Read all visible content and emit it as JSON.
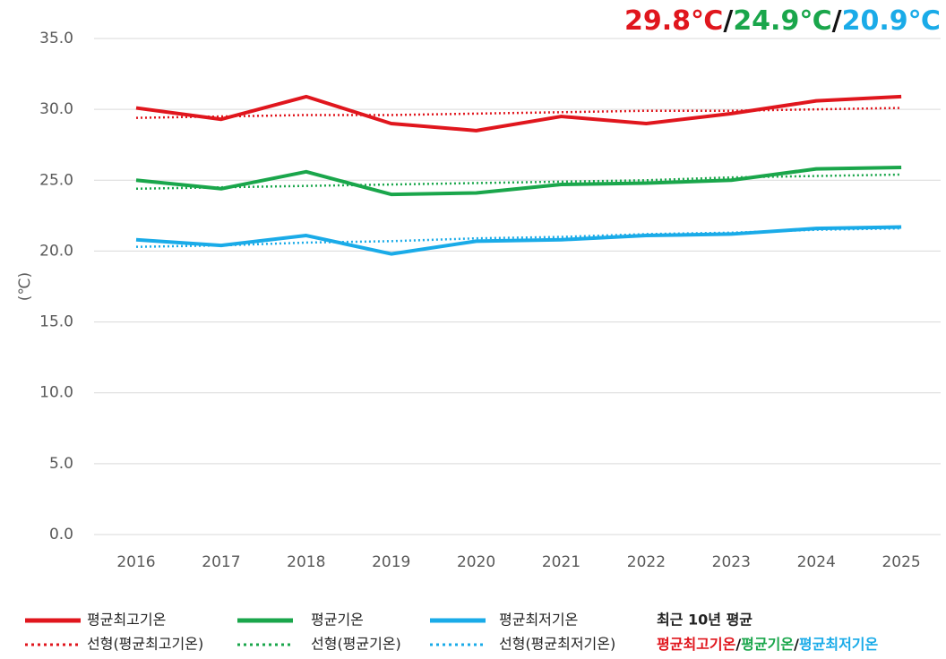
{
  "chart_data": {
    "type": "line",
    "annotation": [
      {
        "text": "29.8℃",
        "color": "#e0161d"
      },
      {
        "text": "/",
        "color": "#111111"
      },
      {
        "text": "24.9℃",
        "color": "#1aa64b"
      },
      {
        "text": "/",
        "color": "#111111"
      },
      {
        "text": "20.9℃",
        "color": "#1aabe8"
      }
    ],
    "y_label": "(℃)",
    "categories": [
      "2016",
      "2017",
      "2018",
      "2019",
      "2020",
      "2021",
      "2022",
      "2023",
      "2024",
      "2025"
    ],
    "series": [
      {
        "name": "평균최고기온",
        "color": "#e0161d",
        "style": "solid",
        "values": [
          30.1,
          29.3,
          30.9,
          29.0,
          28.5,
          29.5,
          29.0,
          29.7,
          30.6,
          30.9
        ]
      },
      {
        "name": "평균기온",
        "color": "#1aa64b",
        "style": "solid",
        "values": [
          25.0,
          24.4,
          25.6,
          24.0,
          24.1,
          24.7,
          24.8,
          25.0,
          25.8,
          25.9
        ]
      },
      {
        "name": "평균최저기온",
        "color": "#1aabe8",
        "style": "solid",
        "values": [
          20.8,
          20.4,
          21.1,
          19.8,
          20.7,
          20.8,
          21.1,
          21.2,
          21.6,
          21.7
        ]
      },
      {
        "name": "선형(평균최고기온)",
        "color": "#e0161d",
        "style": "dotted",
        "values": [
          29.4,
          29.5,
          29.6,
          29.6,
          29.7,
          29.8,
          29.9,
          29.9,
          30.0,
          30.1
        ]
      },
      {
        "name": "선형(평균기온)",
        "color": "#1aa64b",
        "style": "dotted",
        "values": [
          24.4,
          24.5,
          24.6,
          24.7,
          24.8,
          24.9,
          25.0,
          25.2,
          25.3,
          25.4
        ]
      },
      {
        "name": "선형(평균최저기온)",
        "color": "#1aabe8",
        "style": "dotted",
        "values": [
          20.3,
          20.4,
          20.6,
          20.7,
          20.9,
          21.0,
          21.2,
          21.3,
          21.5,
          21.6
        ]
      }
    ],
    "ylim": [
      0,
      35
    ],
    "yticks": [
      {
        "value": 0,
        "label": "0.0"
      },
      {
        "value": 5,
        "label": "5.0"
      },
      {
        "value": 10,
        "label": "10.0"
      },
      {
        "value": 15,
        "label": "15.0"
      },
      {
        "value": 20,
        "label": "20.0"
      },
      {
        "value": 25,
        "label": "25.0"
      },
      {
        "value": 30,
        "label": "30.0"
      },
      {
        "value": 35,
        "label": "35.0"
      }
    ],
    "grid": true,
    "legend_note": {
      "title": "최근 10년 평균",
      "parts": [
        {
          "text": "평균최고기온",
          "color": "#e0161d"
        },
        {
          "text": "/",
          "color": "#111111"
        },
        {
          "text": "평균기온",
          "color": "#1aa64b"
        },
        {
          "text": "/",
          "color": "#111111"
        },
        {
          "text": "평균최저기온",
          "color": "#1aabe8"
        }
      ]
    }
  }
}
